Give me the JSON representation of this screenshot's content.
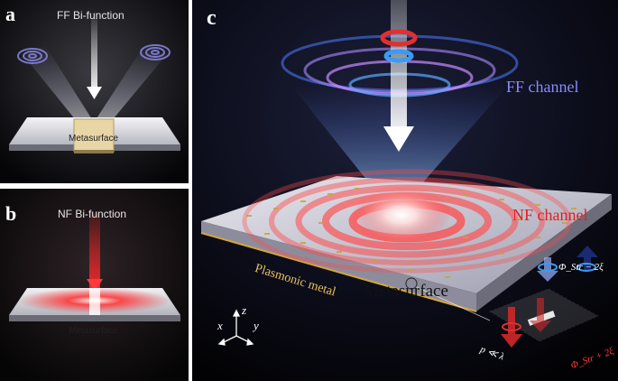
{
  "panel_a": {
    "label": "a",
    "title": "FF Bi-function",
    "device_label": "Metasurface"
  },
  "panel_b": {
    "label": "b",
    "title": "NF Bi-function",
    "device_label": "Metasurface"
  },
  "panel_c": {
    "label": "c",
    "ff_channel": "FF channel",
    "nf_channel": "NF channel",
    "metasurface": "Metasurface",
    "plasmonic_metal": "Plasmonic metal",
    "axis_x": "x",
    "axis_y": "y",
    "axis_z": "z",
    "phi_minus": "Φ_Str − 2ξ",
    "phi_plus": "Φ_Str + 2ξ",
    "period": "p ≪ λ"
  }
}
